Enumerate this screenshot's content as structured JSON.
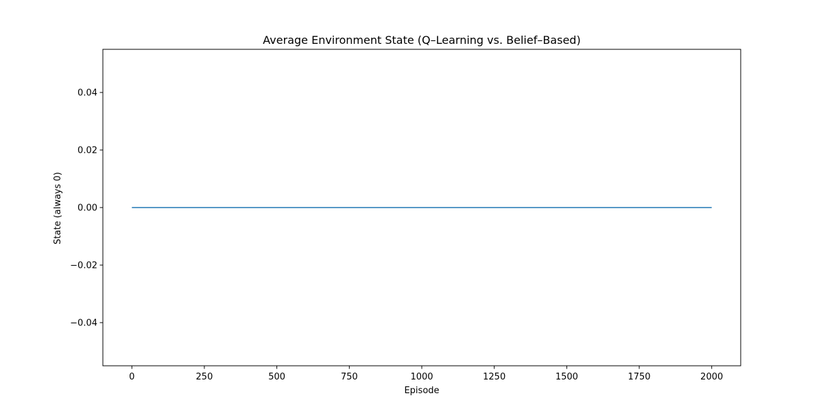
{
  "chart_data": {
    "type": "line",
    "title": "Average Environment State (Q–Learning vs. Belief–Based)",
    "xlabel": "Episode",
    "ylabel": "State (always 0)",
    "xlim": [
      -100,
      2100
    ],
    "ylim": [
      -0.055,
      0.055
    ],
    "xticks": [
      0,
      250,
      500,
      750,
      1000,
      1250,
      1500,
      1750,
      2000
    ],
    "xtick_labels": [
      "0",
      "250",
      "500",
      "750",
      "1000",
      "1250",
      "1500",
      "1750",
      "2000"
    ],
    "yticks": [
      0.04,
      0.02,
      0.0,
      -0.02,
      -0.04
    ],
    "ytick_labels": [
      "0.04",
      "0.02",
      "0.00",
      "−0.02",
      "−0.04"
    ],
    "grid": false,
    "series": [
      {
        "color": "#1f77b4",
        "x": [
          0,
          2000
        ],
        "y": [
          0,
          0
        ]
      }
    ]
  }
}
